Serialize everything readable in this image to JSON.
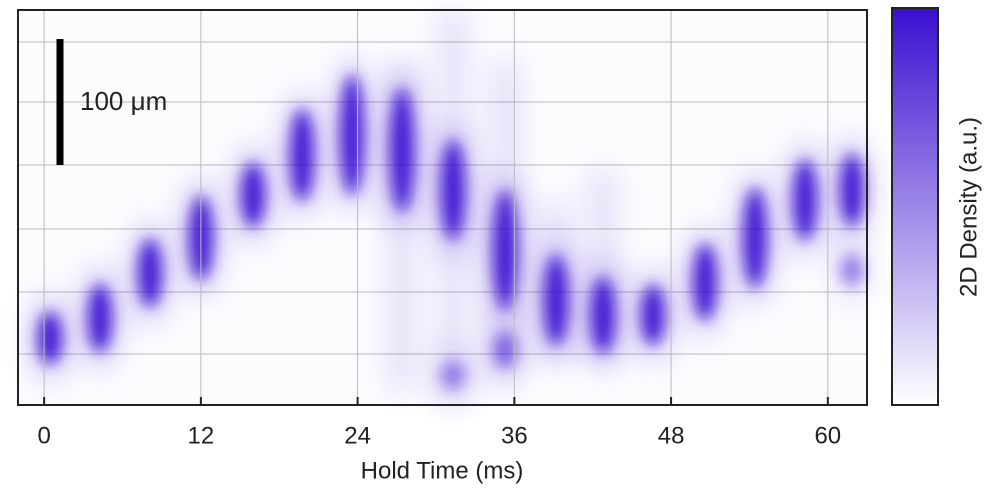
{
  "chart_data": {
    "type": "image",
    "x_label": "Hold Time (ms)",
    "xlim": [
      -2,
      63
    ],
    "xticks": [
      0,
      12,
      24,
      36,
      48,
      60
    ],
    "grid": true,
    "scale_bar_label": "100 μm",
    "colorbar_label": "2D Density (a.u.)",
    "colorbar_colors": [
      "#ffffff",
      "#3a0fd0"
    ]
  }
}
